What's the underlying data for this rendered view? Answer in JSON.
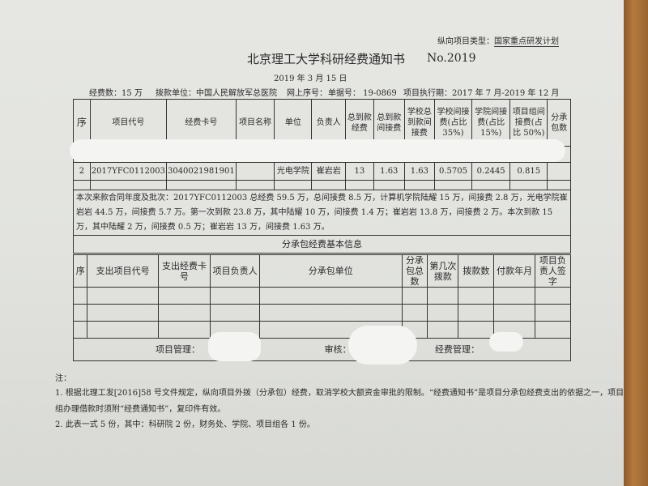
{
  "project_type": {
    "label": "纵向项目类型：",
    "value": "国家重点研发计划"
  },
  "title": "北京理工大学科研经费通知书",
  "number": "No.2019",
  "date": "2019 年 3 月 15 日",
  "info": {
    "amount": "经费数：15 万",
    "payer": "拨款单位：中国人民解放军总医院",
    "online_no": "网上序号：",
    "receipt_no": "单据号：  19-0869",
    "period": "项目执行期：2017 年 7 月-2019 年 12 月"
  },
  "main_table": {
    "headers": [
      "序",
      "项目代号",
      "经费卡号",
      "项目名称",
      "单位",
      "负责人",
      "总到款经费",
      "总到款间接费",
      "学校总到款间接费",
      "学校间接费(占比 35%)",
      "学院间接费(占比 15%)",
      "项目组间接费(占比 50%)",
      "分承包数"
    ],
    "rows": [
      [
        "2",
        "2017YFC0112003",
        "3040021981901",
        "",
        "光电学院",
        "崔岩岩",
        "13",
        "1.63",
        "1.63",
        "0.5705",
        "0.2445",
        "0.815",
        ""
      ]
    ]
  },
  "remark": "本次来款合同年度及批次：2017YFC0112003 总经费 59.5 万，总间接费 8.5 万，计算机学院陆耀 15 万，间接费 2.8 万，光电学院崔岩岩 44.5 万，间接费 5.7 万。第一次到款 23.8 万，其中陆耀 10 万，间接费 1.4 万；崔岩岩 13.8 万，间接费 2 万。本次到款 15 万，其中陆耀 2 万，间接费 0.5 万；崔岩岩 13 万，间接费 1.63 万。",
  "sub_table": {
    "title": "分承包经费基本信息",
    "headers": [
      "序",
      "支出项目代号",
      "支出经费卡号",
      "项目负责人",
      "分承包单位",
      "分承包总数",
      "第几次拨款",
      "拨款数",
      "付款年月",
      "项目负责人签字"
    ]
  },
  "signatures": {
    "project_mgmt": "项目管理：",
    "review": "审核：",
    "fund_mgmt": "经费管理："
  },
  "notes": {
    "label": "注：",
    "items": [
      "1. 根据北理工发[2016]58 号文件规定，纵向项目外拨（分承包）经费，取消学校大额资金审批的限制。“经费通知书”是项目分承包经费支出的依据之一，项目",
      "组办理借款时须附“经费通知书”，复印件有效。",
      "2. 此表一式 5 份，其中：科研院 2 份，财务处、学院、项目组各 1 份。"
    ]
  }
}
